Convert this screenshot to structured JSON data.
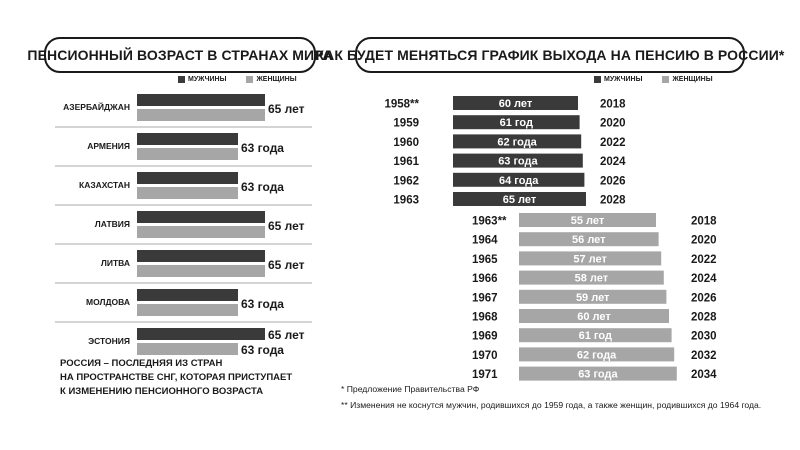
{
  "colors": {
    "men": "#3a3a3a",
    "women": "#a6a6a6",
    "bar_label_on_dark": "#ffffff",
    "text": "#1a1a1a",
    "separator": "#8c8c8c"
  },
  "left_panel": {
    "title": "ПЕНСИОННЫЙ ВОЗРАСТ В СТРАНАХ МИРА",
    "legend": {
      "men": "МУЖЧИНЫ",
      "women": "ЖЕНЩИНЫ"
    },
    "note_lines": [
      "РОССИЯ – ПОСЛЕДНЯЯ ИЗ СТРАН",
      "НА ПРОСТРАНСТВЕ СНГ, КОТОРАЯ ПРИСТУПАЕТ",
      "К ИЗМЕНЕНИЮ ПЕНСИОННОГО ВОЗРАСТА"
    ]
  },
  "right_panel": {
    "title": "КАК БУДЕТ МЕНЯТЬСЯ ГРАФИК ВЫХОДА НА ПЕНСИЮ В РОССИИ*",
    "legend": {
      "men": "МУЖЧИНЫ",
      "women": "ЖЕНЩИНЫ"
    },
    "footnotes": [
      "* Предложение Правительства РФ",
      "** Изменения не коснутся мужчин, родившихся до 1959 года, а также женщин, родившихся до 1964 года."
    ]
  },
  "chart_data": [
    {
      "type": "bar",
      "orientation": "horizontal",
      "title": "ПЕНСИОННЫЙ ВОЗРАСТ В СТРАНАХ МИРА",
      "categories": [
        "АЗЕРБАЙДЖАН",
        "АРМЕНИЯ",
        "КАЗАХСТАН",
        "ЛАТВИЯ",
        "ЛИТВА",
        "МОЛДОВА",
        "ЭСТОНИЯ"
      ],
      "series": [
        {
          "name": "МУЖЧИНЫ",
          "values": [
            65,
            63,
            63,
            65,
            65,
            63,
            65
          ]
        },
        {
          "name": "ЖЕНЩИНЫ",
          "values": [
            65,
            63,
            63,
            65,
            65,
            63,
            63
          ]
        }
      ],
      "value_labels": [
        "65 лет",
        "63 года",
        "63 года",
        "65 лет",
        "65 лет",
        "63 года",
        "65 лет",
        "63 года"
      ],
      "legend": "top-right"
    },
    {
      "type": "bar",
      "orientation": "horizontal",
      "title": "КАК БУДЕТ МЕНЯТЬСЯ ГРАФИК ВЫХОДА НА ПЕНСИЮ В РОССИИ*",
      "series": [
        {
          "name": "МУЖЧИНЫ",
          "rows": [
            {
              "birth_year": "1958**",
              "age": 60,
              "label": "60 лет",
              "retire_year": "2018"
            },
            {
              "birth_year": "1959",
              "age": 61,
              "label": "61 год",
              "retire_year": "2020"
            },
            {
              "birth_year": "1960",
              "age": 62,
              "label": "62 года",
              "retire_year": "2022"
            },
            {
              "birth_year": "1961",
              "age": 63,
              "label": "63 года",
              "retire_year": "2024"
            },
            {
              "birth_year": "1962",
              "age": 64,
              "label": "64 года",
              "retire_year": "2026"
            },
            {
              "birth_year": "1963",
              "age": 65,
              "label": "65 лет",
              "retire_year": "2028"
            }
          ]
        },
        {
          "name": "ЖЕНЩИНЫ",
          "rows": [
            {
              "birth_year": "1963**",
              "age": 55,
              "label": "55 лет",
              "retire_year": "2018"
            },
            {
              "birth_year": "1964",
              "age": 56,
              "label": "56 лет",
              "retire_year": "2020"
            },
            {
              "birth_year": "1965",
              "age": 57,
              "label": "57 лет",
              "retire_year": "2022"
            },
            {
              "birth_year": "1966",
              "age": 58,
              "label": "58 лет",
              "retire_year": "2024"
            },
            {
              "birth_year": "1967",
              "age": 59,
              "label": "59 лет",
              "retire_year": "2026"
            },
            {
              "birth_year": "1968",
              "age": 60,
              "label": "60 лет",
              "retire_year": "2028"
            },
            {
              "birth_year": "1969",
              "age": 61,
              "label": "61 год",
              "retire_year": "2030"
            },
            {
              "birth_year": "1970",
              "age": 62,
              "label": "62 года",
              "retire_year": "2032"
            },
            {
              "birth_year": "1971",
              "age": 63,
              "label": "63 года",
              "retire_year": "2034"
            }
          ]
        }
      ],
      "legend": "top-right"
    }
  ]
}
